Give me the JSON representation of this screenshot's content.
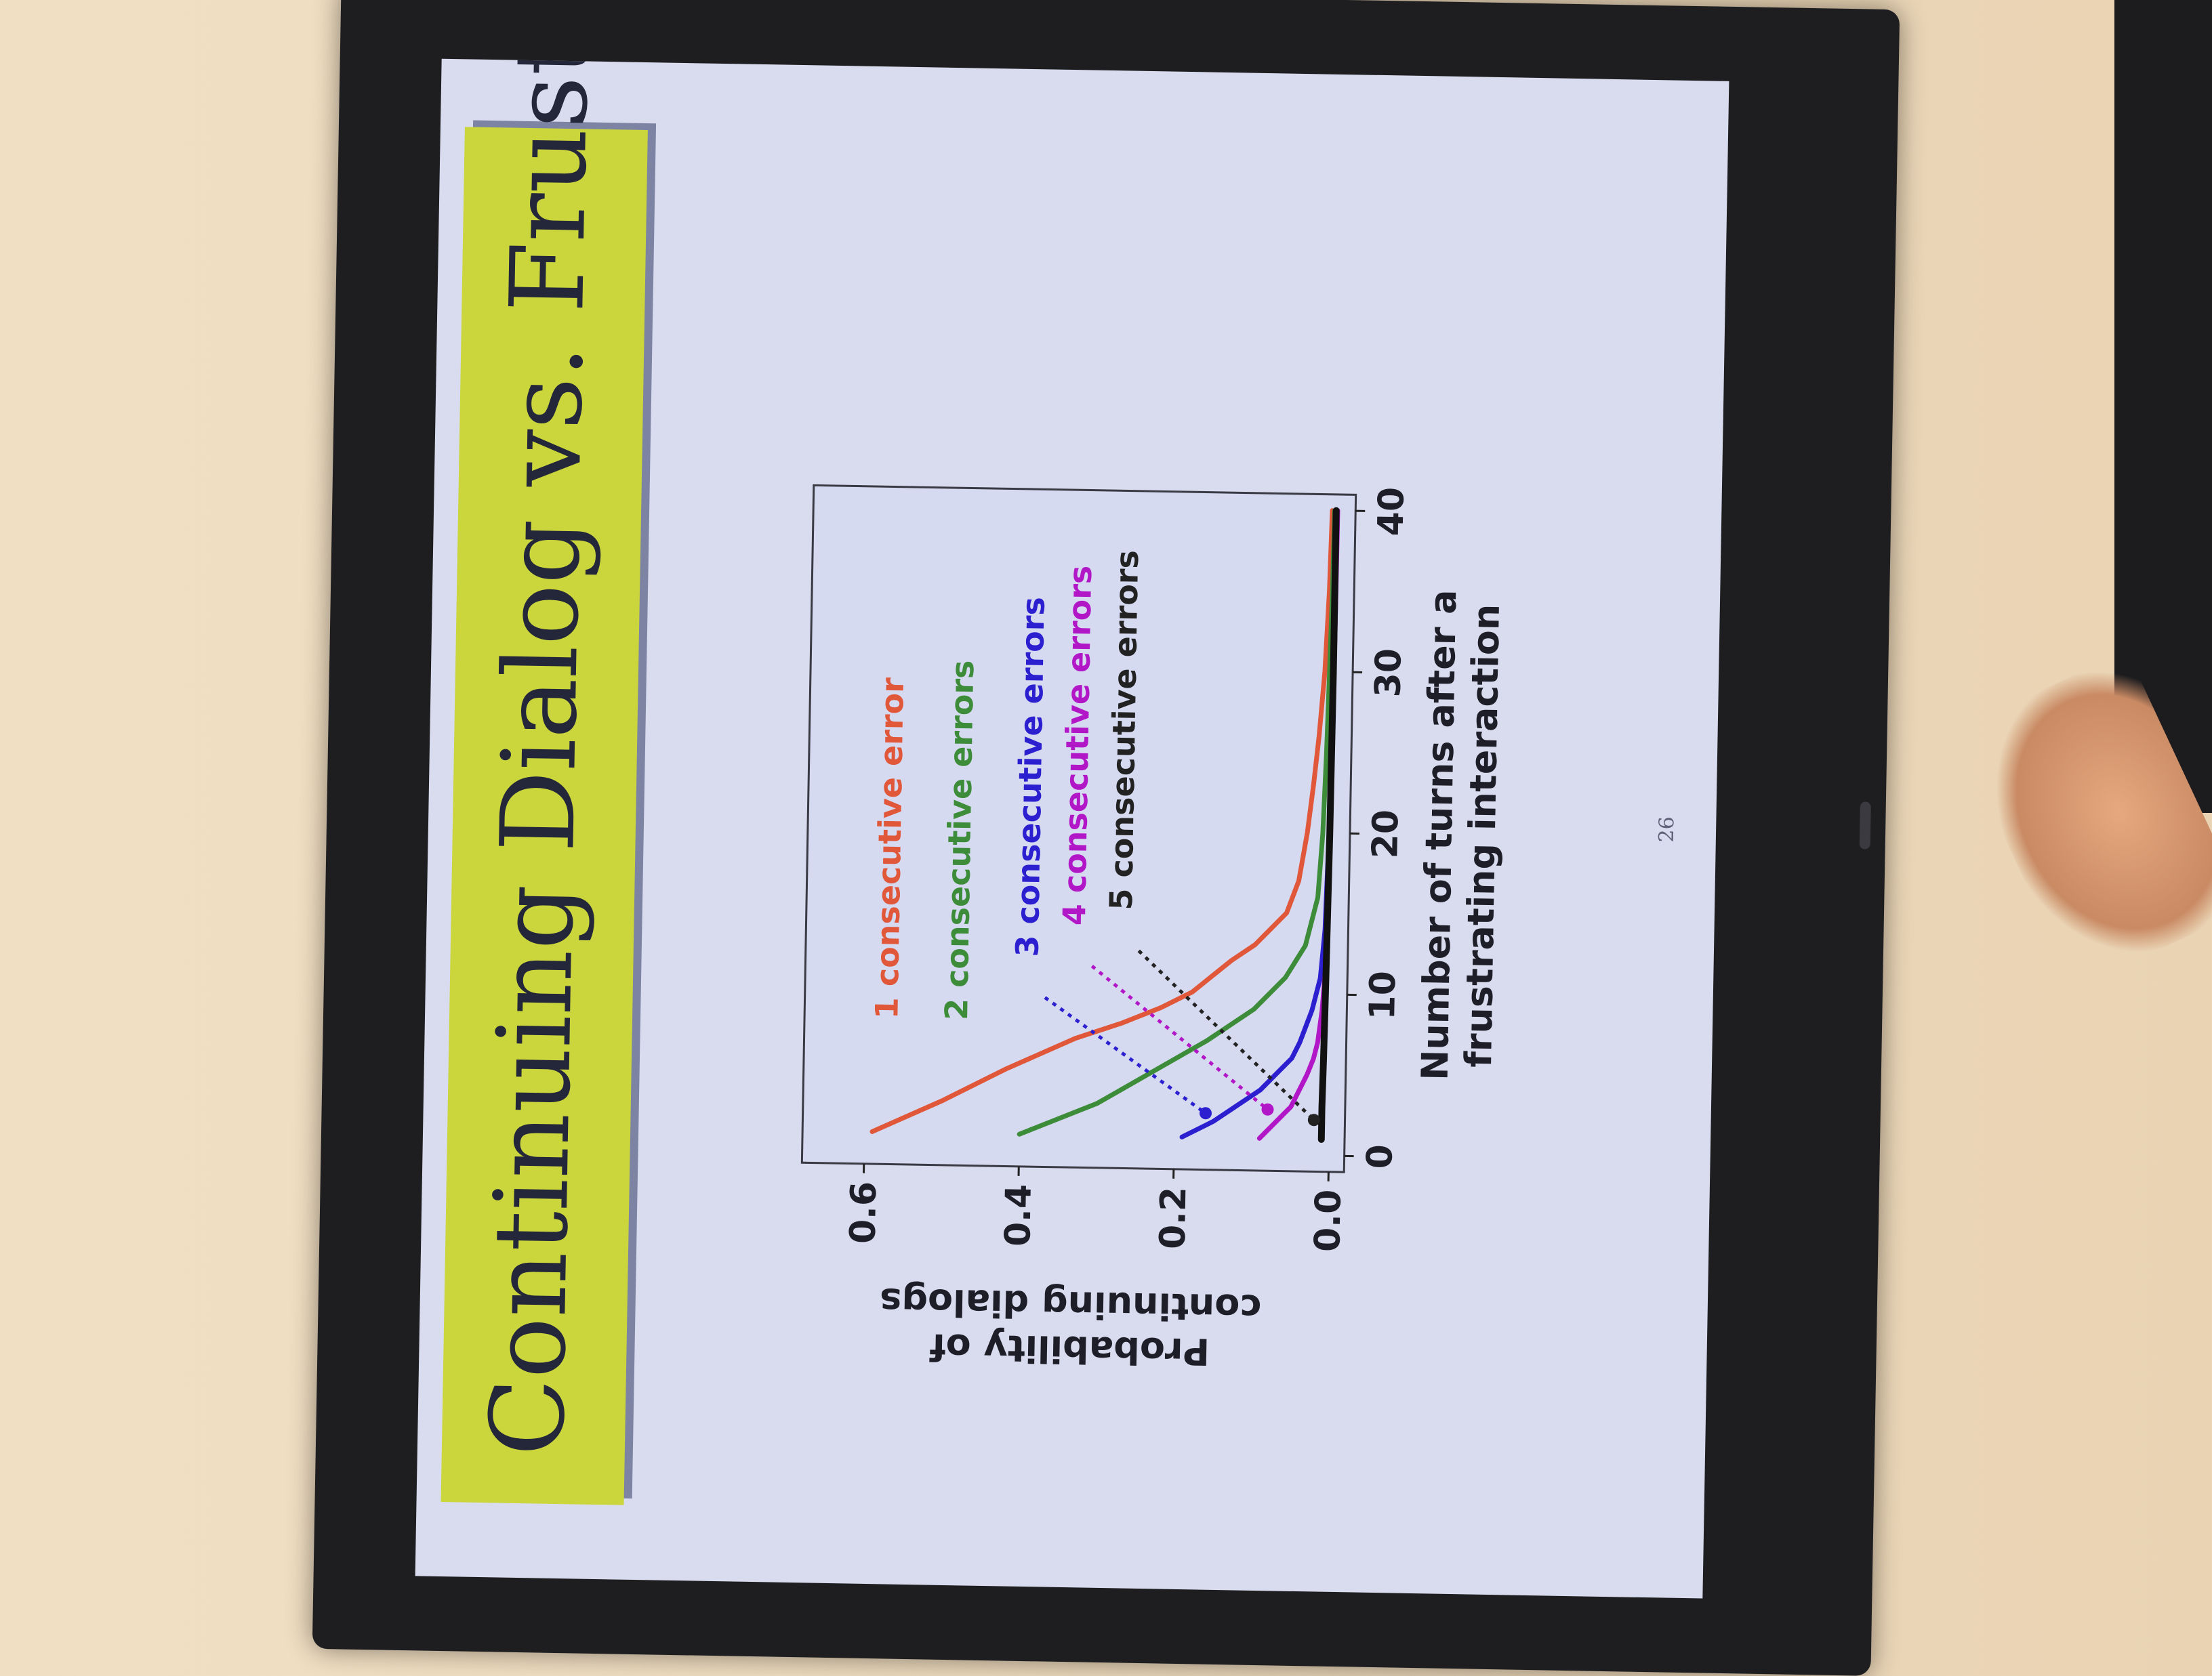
{
  "slide": {
    "title": "Continuing Dialog vs. Frustration",
    "page_number": "26"
  },
  "chart_data": {
    "type": "line",
    "title": "",
    "xlabel": [
      "Number of turns after a",
      "frustrating interaction"
    ],
    "ylabel": [
      "Probability of",
      "continuing dialogs"
    ],
    "xlim": [
      -1,
      41
    ],
    "ylim": [
      -0.02,
      0.68
    ],
    "xticks": [
      0,
      10,
      20,
      30,
      40
    ],
    "yticks": [
      0.0,
      0.2,
      0.4,
      0.6
    ],
    "ytick_labels": [
      "0.0",
      "0.2",
      "0.4",
      "0.6"
    ],
    "grid": false,
    "series": [
      {
        "name": "1 consecutive error",
        "color": "#e0573a",
        "x": [
          1,
          3,
          5,
          7,
          8,
          9,
          10,
          12,
          13,
          14,
          15,
          17,
          20,
          23,
          26,
          30,
          35,
          40
        ],
        "values": [
          0.59,
          0.5,
          0.42,
          0.33,
          0.27,
          0.22,
          0.18,
          0.13,
          0.1,
          0.08,
          0.06,
          0.045,
          0.035,
          0.028,
          0.022,
          0.016,
          0.012,
          0.01
        ]
      },
      {
        "name": "2 consecutive errors",
        "color": "#3d8c3a",
        "x": [
          1,
          3,
          5,
          7,
          9,
          11,
          13,
          16,
          20,
          25,
          30,
          35,
          40
        ],
        "values": [
          0.4,
          0.3,
          0.23,
          0.16,
          0.1,
          0.06,
          0.035,
          0.02,
          0.015,
          0.012,
          0.01,
          0.008,
          0.007
        ]
      },
      {
        "name": "3 consecutive errors",
        "color": "#2b1fd0",
        "x": [
          1,
          2,
          3,
          4,
          5,
          6,
          7,
          9,
          11,
          14,
          20,
          30,
          40
        ],
        "values": [
          0.19,
          0.15,
          0.12,
          0.09,
          0.07,
          0.05,
          0.04,
          0.025,
          0.015,
          0.01,
          0.007,
          0.005,
          0.004
        ]
      },
      {
        "name": "4 consecutive errors",
        "color": "#b117c7",
        "x": [
          1,
          2,
          3,
          4,
          5,
          6,
          7,
          9,
          12,
          15,
          20,
          30,
          40
        ],
        "values": [
          0.09,
          0.07,
          0.05,
          0.04,
          0.03,
          0.022,
          0.017,
          0.012,
          0.008,
          0.006,
          0.005,
          0.004,
          0.003
        ]
      },
      {
        "name": "5 consecutive errors",
        "color": "#111111",
        "x": [
          1,
          3,
          6,
          10,
          20,
          30,
          40
        ],
        "values": [
          0.01,
          0.01,
          0.009,
          0.008,
          0.006,
          0.005,
          0.005
        ]
      }
    ],
    "annotations": [
      {
        "series": 0,
        "text": "1 consecutive error",
        "color": "#e0573a"
      },
      {
        "series": 1,
        "text": "2 consecutive errors",
        "color": "#3d8c3a"
      },
      {
        "series": 2,
        "text": "3 consecutive errors",
        "color": "#2b1fd0"
      },
      {
        "series": 3,
        "text": "4 consecutive errors",
        "color": "#b117c7"
      },
      {
        "series": 4,
        "text": "5 consecutive errors",
        "color": "#222222"
      }
    ]
  },
  "colors": {
    "title_band": "#cbd63c",
    "screen_bg": "#d9dcee",
    "wall": "#f1dfc4"
  }
}
